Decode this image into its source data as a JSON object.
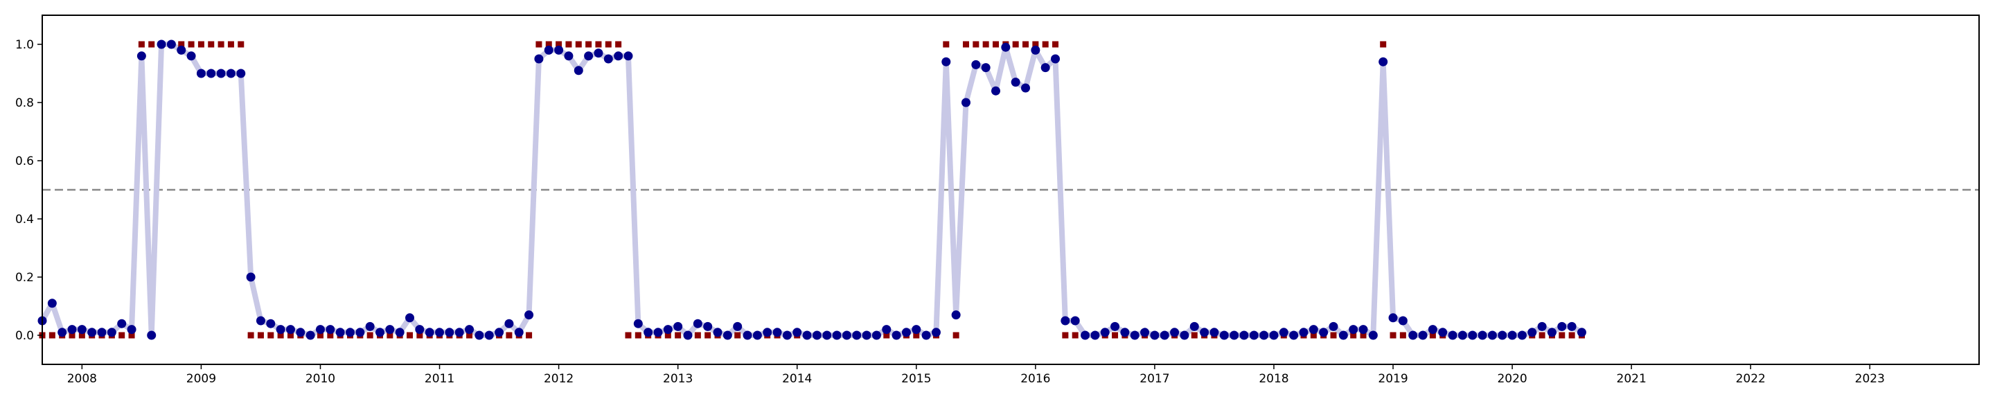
{
  "chart_data": {
    "type": "line",
    "title": "",
    "xlabel": "",
    "ylabel": "",
    "xlim": [
      "2007-09-01",
      "2023-12-01"
    ],
    "ylim": [
      -0.1,
      1.1
    ],
    "grid": false,
    "threshold": 0.5,
    "x_ticks": [
      "2008",
      "2009",
      "2010",
      "2011",
      "2012",
      "2013",
      "2014",
      "2015",
      "2016",
      "2017",
      "2018",
      "2019",
      "2020",
      "2021",
      "2022",
      "2023"
    ],
    "y_ticks": [
      "0.0",
      "0.2",
      "0.4",
      "0.6",
      "0.8",
      "1.0"
    ],
    "colors": {
      "line": "#c8c8e6",
      "probability": "#00008b",
      "actual": "#8b0000",
      "threshold": "#888888"
    },
    "dates": [
      "2007-09",
      "2007-10",
      "2007-11",
      "2007-12",
      "2008-01",
      "2008-02",
      "2008-03",
      "2008-04",
      "2008-05",
      "2008-06",
      "2008-07",
      "2008-08",
      "2008-09",
      "2008-10",
      "2008-11",
      "2008-12",
      "2009-01",
      "2009-02",
      "2009-03",
      "2009-04",
      "2009-05",
      "2009-06",
      "2009-07",
      "2009-08",
      "2009-09",
      "2009-10",
      "2009-11",
      "2009-12",
      "2010-01",
      "2010-02",
      "2010-03",
      "2010-04",
      "2010-05",
      "2010-06",
      "2010-07",
      "2010-08",
      "2010-09",
      "2010-10",
      "2010-11",
      "2010-12",
      "2011-01",
      "2011-02",
      "2011-03",
      "2011-04",
      "2011-05",
      "2011-06",
      "2011-07",
      "2011-08",
      "2011-09",
      "2011-10",
      "2011-11",
      "2011-12",
      "2012-01",
      "2012-02",
      "2012-03",
      "2012-04",
      "2012-05",
      "2012-06",
      "2012-07",
      "2012-08",
      "2012-09",
      "2012-10",
      "2012-11",
      "2012-12",
      "2013-01",
      "2013-02",
      "2013-03",
      "2013-04",
      "2013-05",
      "2013-06",
      "2013-07",
      "2013-08",
      "2013-09",
      "2013-10",
      "2013-11",
      "2013-12",
      "2014-01",
      "2014-02",
      "2014-03",
      "2014-04",
      "2014-05",
      "2014-06",
      "2014-07",
      "2014-08",
      "2014-09",
      "2014-10",
      "2014-11",
      "2014-12",
      "2015-01",
      "2015-02",
      "2015-03",
      "2015-04",
      "2015-05",
      "2015-06",
      "2015-07",
      "2015-08",
      "2015-09",
      "2015-10",
      "2015-11",
      "2015-12",
      "2016-01",
      "2016-02",
      "2016-03",
      "2016-04",
      "2016-05",
      "2016-06",
      "2016-07",
      "2016-08",
      "2016-09",
      "2016-10",
      "2016-11",
      "2016-12",
      "2017-01",
      "2017-02",
      "2017-03",
      "2017-04",
      "2017-05",
      "2017-06",
      "2017-07",
      "2017-08",
      "2017-09",
      "2017-10",
      "2017-11",
      "2017-12",
      "2018-01",
      "2018-02",
      "2018-03",
      "2018-04",
      "2018-05",
      "2018-06",
      "2018-07",
      "2018-08",
      "2018-09",
      "2018-10",
      "2018-11",
      "2018-12",
      "2019-01",
      "2019-02",
      "2019-03",
      "2019-04",
      "2019-05",
      "2019-06",
      "2019-07",
      "2019-08",
      "2019-09",
      "2019-10",
      "2019-11",
      "2019-12",
      "2020-01",
      "2020-02",
      "2020-03",
      "2020-04",
      "2020-05",
      "2020-06",
      "2020-07",
      "2020-08"
    ],
    "series": [
      {
        "values": [
          0.05,
          0.11,
          0.01,
          0.02,
          0.02,
          0.01,
          0.01,
          0.01,
          0.04,
          0.02,
          0.96,
          0.0,
          1.0,
          1.0,
          0.98,
          0.96,
          0.9,
          0.9,
          0.9,
          0.9,
          0.9,
          0.2,
          0.05,
          0.04,
          0.02,
          0.02,
          0.01,
          0.0,
          0.02,
          0.02,
          0.01,
          0.01,
          0.01,
          0.03,
          0.01,
          0.02,
          0.01,
          0.06,
          0.02,
          0.01,
          0.01,
          0.01,
          0.01,
          0.02,
          0.0,
          0.0,
          0.01,
          0.04,
          0.01,
          0.07,
          0.95,
          0.98,
          0.98,
          0.96,
          0.91,
          0.96,
          0.97,
          0.95,
          0.96,
          0.96,
          0.04,
          0.01,
          0.01,
          0.02,
          0.03,
          0.0,
          0.04,
          0.03,
          0.01,
          0.0,
          0.03,
          0.0,
          0.0,
          0.01,
          0.01,
          0.0,
          0.01,
          0.0,
          0.0,
          0.0,
          0.0,
          0.0,
          0.0,
          0.0,
          0.0,
          0.02,
          0.0,
          0.01,
          0.02,
          0.0,
          0.01,
          0.94,
          0.07,
          0.8,
          0.93,
          0.92,
          0.84,
          0.99,
          0.87,
          0.85,
          0.98,
          0.92,
          0.95,
          0.05,
          0.05,
          0.0,
          0.0,
          0.01,
          0.03,
          0.01,
          0.0,
          0.01,
          0.0,
          0.0,
          0.01,
          0.0,
          0.03,
          0.01,
          0.01,
          0.0,
          0.0,
          0.0,
          0.0,
          0.0,
          0.0,
          0.01,
          0.0,
          0.01,
          0.02,
          0.01,
          0.03,
          0.0,
          0.02,
          0.02,
          0.0,
          0.94,
          0.06,
          0.05,
          0.0,
          0.0,
          0.02,
          0.01,
          0.0,
          0.0,
          0.0,
          0.0,
          0.0,
          0.0,
          0.0,
          0.0,
          0.01,
          0.03,
          0.01,
          0.03,
          0.03,
          0.01
        ]
      },
      {
        "values": [
          0,
          0,
          0,
          0,
          0,
          0,
          0,
          0,
          0,
          0,
          1,
          1,
          1,
          1,
          1,
          1,
          1,
          1,
          1,
          1,
          1,
          0,
          0,
          0,
          0,
          0,
          0,
          0,
          0,
          0,
          0,
          0,
          0,
          0,
          0,
          0,
          0,
          0,
          0,
          0,
          0,
          0,
          0,
          0,
          0,
          0,
          0,
          0,
          0,
          0,
          1,
          1,
          1,
          1,
          1,
          1,
          1,
          1,
          1,
          0,
          0,
          0,
          0,
          0,
          0,
          0,
          0,
          0,
          0,
          0,
          0,
          0,
          0,
          0,
          0,
          0,
          0,
          0,
          0,
          0,
          0,
          0,
          0,
          0,
          0,
          0,
          0,
          0,
          0,
          0,
          0,
          1,
          0,
          1,
          1,
          1,
          1,
          1,
          1,
          1,
          1,
          1,
          1,
          0,
          0,
          0,
          0,
          0,
          0,
          0,
          0,
          0,
          0,
          0,
          0,
          0,
          0,
          0,
          0,
          0,
          0,
          0,
          0,
          0,
          0,
          0,
          0,
          0,
          0,
          0,
          0,
          0,
          0,
          0,
          0,
          1,
          0,
          0,
          0,
          0,
          0,
          0,
          0,
          0,
          0,
          0,
          0,
          0,
          0,
          0,
          0,
          0,
          0,
          0,
          0,
          0
        ]
      }
    ]
  }
}
